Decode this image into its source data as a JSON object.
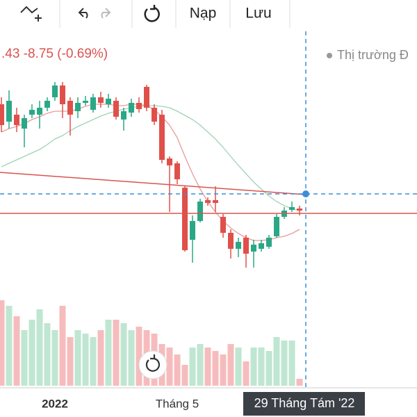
{
  "toolbar": {
    "buttons": [
      "Nạp",
      "Lưu"
    ]
  },
  "legend": {
    "change": ".43 -8.75 (-0.69%)",
    "status": "Thị trường Đ"
  },
  "chart_data": {
    "type": "candlestick",
    "categories": [
      null,
      null,
      null,
      null,
      null,
      null,
      null,
      "2022",
      null,
      null,
      null,
      null,
      null,
      null,
      null,
      null,
      null,
      null,
      null,
      null,
      null,
      null,
      null,
      "Tháng 5",
      null,
      null,
      null,
      null,
      null,
      null,
      null,
      null,
      null,
      null,
      null,
      null,
      null,
      null,
      null,
      null
    ],
    "crosshair_label": "29 Tháng Tám '22",
    "ylim": [
      1140,
      1530
    ],
    "up_color": "#2aa886",
    "down_color": "#e0504a",
    "volume_up_color": "#bfe6d1",
    "volume_down_color": "#f6bcbd",
    "open": [
      1450,
      1425,
      1435,
      1415,
      1435,
      1435,
      1445,
      1460,
      1477,
      1455,
      1440,
      1452,
      1442,
      1460,
      1450,
      1455,
      1428,
      1438,
      1452,
      1475,
      1445,
      1435,
      1372,
      1365,
      1330,
      1255,
      1282,
      1312,
      1312,
      1288,
      1265,
      1242,
      1258,
      1238,
      1242,
      1245,
      1260,
      1288,
      1298,
      1300
    ],
    "close": [
      1420,
      1455,
      1420,
      1430,
      1442,
      1445,
      1455,
      1477,
      1450,
      1435,
      1452,
      1455,
      1460,
      1452,
      1458,
      1432,
      1440,
      1452,
      1443,
      1445,
      1425,
      1370,
      1362,
      1342,
      1240,
      1282,
      1310,
      1308,
      1308,
      1265,
      1242,
      1252,
      1235,
      1248,
      1250,
      1258,
      1288,
      1297,
      1302,
      1297
    ],
    "high": [
      1460,
      1470,
      1445,
      1435,
      1450,
      1455,
      1460,
      1482,
      1482,
      1460,
      1460,
      1462,
      1465,
      1468,
      1465,
      1460,
      1445,
      1458,
      1460,
      1478,
      1450,
      1442,
      1375,
      1368,
      1332,
      1290,
      1314,
      1316,
      1332,
      1292,
      1270,
      1258,
      1262,
      1255,
      1255,
      1262,
      1292,
      1302,
      1310,
      1304
    ],
    "low": [
      1410,
      1415,
      1410,
      1388,
      1430,
      1415,
      1440,
      1455,
      1430,
      1405,
      1430,
      1448,
      1438,
      1445,
      1445,
      1428,
      1412,
      1432,
      1438,
      1440,
      1420,
      1365,
      1295,
      1335,
      1238,
      1222,
      1280,
      1304,
      1295,
      1258,
      1228,
      1230,
      1215,
      1215,
      1238,
      1242,
      1258,
      1285,
      1295,
      1290
    ],
    "volume": [
      123,
      115,
      100,
      80,
      95,
      110,
      90,
      80,
      115,
      70,
      80,
      75,
      70,
      80,
      95,
      95,
      90,
      80,
      85,
      80,
      75,
      60,
      55,
      45,
      30,
      55,
      60,
      55,
      50,
      45,
      60,
      55,
      35,
      55,
      55,
      50,
      70,
      65,
      65,
      10
    ],
    "series": [
      {
        "color": "#e89a9a",
        "values": [
          1410,
          1415,
          1418,
          1422,
          1428,
          1432,
          1437,
          1440,
          1440,
          1440,
          1443,
          1447,
          1450,
          1450,
          1450,
          1448,
          1448,
          1450,
          1450,
          1448,
          1442,
          1432,
          1420,
          1402,
          1375,
          1350,
          1328,
          1310,
          1295,
          1282,
          1272,
          1264,
          1258,
          1254,
          1254,
          1255,
          1258,
          1260,
          1264,
          1270
        ]
      },
      {
        "color": "#9fd3b6",
        "values": [
          1360,
          1365,
          1370,
          1375,
          1380,
          1385,
          1392,
          1400,
          1405,
          1412,
          1418,
          1423,
          1428,
          1433,
          1437,
          1440,
          1443,
          1445,
          1447,
          1448,
          1448,
          1447,
          1445,
          1440,
          1434,
          1428,
          1420,
          1410,
          1400,
          1388,
          1375,
          1362,
          1350,
          1338,
          1328,
          1318,
          1310,
          1304,
          1300,
          1297
        ]
      }
    ]
  }
}
